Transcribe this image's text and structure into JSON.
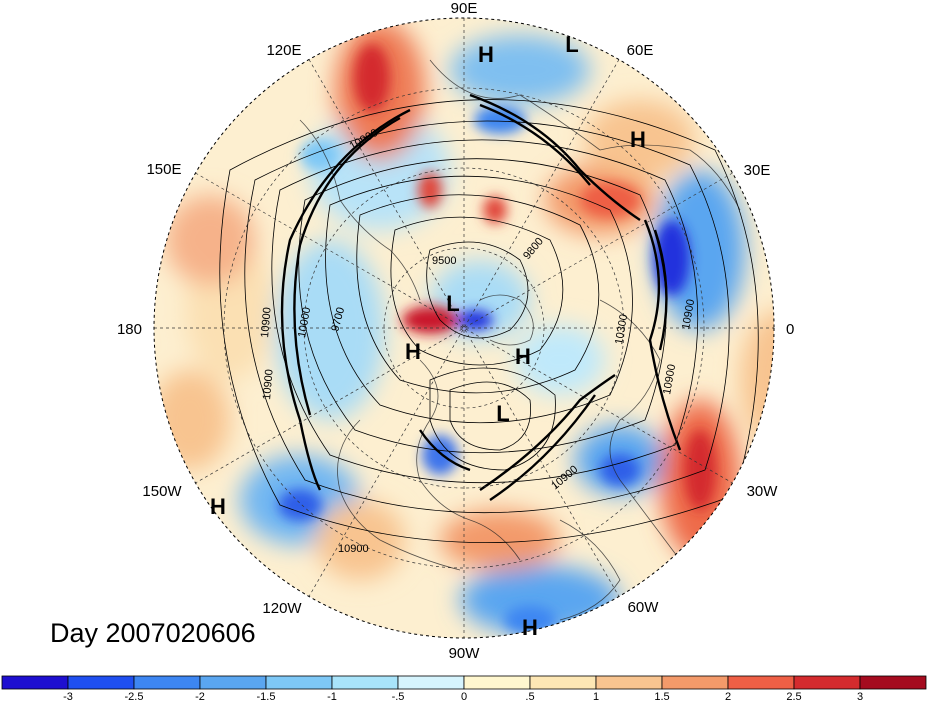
{
  "map": {
    "projection": "north-polar-stereographic",
    "longitude_labels": [
      "90E",
      "60E",
      "30E",
      "0",
      "30W",
      "60W",
      "90W",
      "120W",
      "150W",
      "180",
      "150E",
      "120E"
    ],
    "pressure_systems": [
      {
        "type": "H",
        "where": "north Siberia"
      },
      {
        "type": "L",
        "where": "north-east Siberia"
      },
      {
        "type": "H",
        "where": "Ural region"
      },
      {
        "type": "L",
        "where": "near pole"
      },
      {
        "type": "H",
        "where": "Arctic Alaska side"
      },
      {
        "type": "H",
        "where": "Arctic Canada side"
      },
      {
        "type": "L",
        "where": "Hudson Bay / Canada"
      },
      {
        "type": "H",
        "where": "north-east Pacific"
      },
      {
        "type": "H",
        "where": "Caribbean"
      }
    ],
    "contour_labels": [
      "9500",
      "9700",
      "9800",
      "10000",
      "10300",
      "10900",
      "10900",
      "10900",
      "10900",
      "10900",
      "10900",
      "10900"
    ],
    "colors": {
      "strong_negative": "#2233dd",
      "negative": "#5aa6f0",
      "weak_negative": "#bfe9fb",
      "weak_positive": "#fde7b5",
      "positive": "#f39a6a",
      "strong_positive": "#c9182a"
    }
  },
  "title": {
    "day_label": "Day 2007020606"
  },
  "colorbar": {
    "ticks": [
      "-3",
      "-2.5",
      "-2",
      "-1.5",
      "-1",
      "-.5",
      "0",
      ".5",
      "1",
      "1.5",
      "2",
      "2.5",
      "3"
    ],
    "colors": [
      "#1e0fd0",
      "#1f4ff0",
      "#3d86f2",
      "#5aa6f0",
      "#7ec8f6",
      "#a9e4fa",
      "#d6f4fd",
      "#fff7cf",
      "#fde7b5",
      "#f8c490",
      "#f39a6a",
      "#ee5f45",
      "#d42b2e",
      "#a50b1f"
    ]
  }
}
